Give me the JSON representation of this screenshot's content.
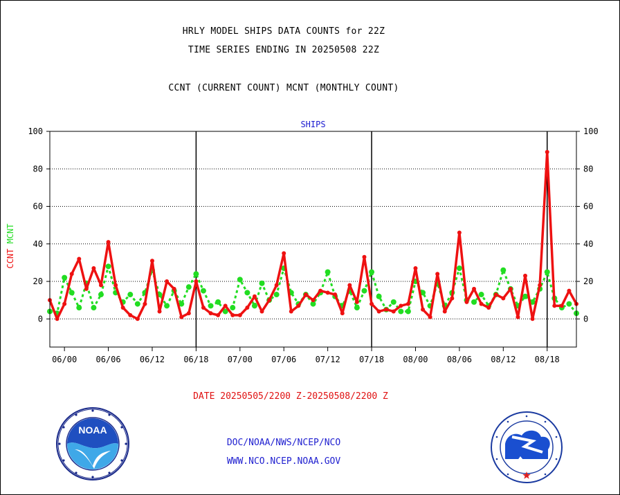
{
  "header": {
    "title1": "HRLY MODEL SHIPS DATA COUNTS for 22Z",
    "title2": "TIME SERIES ENDING IN 20250508 22Z",
    "subtitle": "CCNT (CURRENT COUNT) MCNT (MONTHLY COUNT)"
  },
  "footer": {
    "date_range": "DATE 20250505/2200 Z-20250508/2200 Z",
    "org": "DOC/NOAA/NWS/NCEP/NCO",
    "url": "WWW.NCO.NCEP.NOAA.GOV"
  },
  "logos": {
    "noaa_text": "NOAA",
    "nws_text": "NATIONAL WEATHER SERVICE"
  },
  "chart_data": {
    "type": "line",
    "title": "SHIPS",
    "ylabel_ccnt": "CCNT",
    "ylabel_mcnt": "MCNT",
    "ylim": [
      -15,
      100
    ],
    "yticks": [
      0,
      20,
      40,
      60,
      80,
      100
    ],
    "xlim": [
      -2,
      70
    ],
    "xtick_positions": [
      0,
      6,
      12,
      18,
      24,
      30,
      36,
      42,
      48,
      54,
      60,
      66
    ],
    "xtick_labels": [
      "06/00",
      "06/06",
      "06/12",
      "06/18",
      "07/00",
      "07/06",
      "07/12",
      "07/18",
      "08/00",
      "08/06",
      "08/12",
      "08/18"
    ],
    "day_boundaries": [
      18,
      42,
      66
    ],
    "grid": true,
    "colors": {
      "ccnt": "#ee1111",
      "mcnt": "#22dd22",
      "title": "#1a1ad0",
      "tick": "#000000"
    },
    "series": [
      {
        "name": "CCNT",
        "x": [
          -2,
          -1,
          0,
          1,
          2,
          3,
          4,
          5,
          6,
          7,
          8,
          9,
          10,
          11,
          12,
          13,
          14,
          15,
          16,
          17,
          18,
          19,
          20,
          21,
          22,
          23,
          24,
          25,
          26,
          27,
          28,
          29,
          30,
          31,
          32,
          33,
          34,
          35,
          36,
          37,
          38,
          39,
          40,
          41,
          42,
          43,
          44,
          45,
          46,
          47,
          48,
          49,
          50,
          51,
          52,
          53,
          54,
          55,
          56,
          57,
          58,
          59,
          60,
          61,
          62,
          63,
          64,
          65,
          66,
          67,
          68,
          69,
          70
        ],
        "values": [
          10,
          0,
          8,
          24,
          32,
          16,
          27,
          18,
          41,
          18,
          6,
          2,
          0,
          8,
          31,
          4,
          20,
          16,
          1,
          3,
          20,
          6,
          3,
          2,
          7,
          2,
          2,
          6,
          12,
          4,
          10,
          18,
          35,
          4,
          7,
          13,
          10,
          15,
          14,
          13,
          3,
          18,
          9,
          33,
          8,
          4,
          5,
          4,
          7,
          8,
          27,
          5,
          1,
          24,
          4,
          11,
          46,
          9,
          16,
          8,
          6,
          13,
          11,
          16,
          1,
          23,
          0,
          18,
          89,
          7,
          7,
          15,
          8
        ]
      },
      {
        "name": "MCNT",
        "x": [
          -2,
          -1,
          0,
          1,
          2,
          3,
          4,
          5,
          6,
          7,
          8,
          9,
          10,
          11,
          12,
          13,
          14,
          15,
          16,
          17,
          18,
          19,
          20,
          21,
          22,
          23,
          24,
          25,
          26,
          27,
          28,
          29,
          30,
          31,
          32,
          33,
          34,
          35,
          36,
          37,
          38,
          39,
          40,
          41,
          42,
          43,
          44,
          45,
          46,
          47,
          48,
          49,
          50,
          51,
          52,
          53,
          54,
          55,
          56,
          57,
          58,
          59,
          60,
          61,
          62,
          63,
          64,
          65,
          66,
          67,
          68,
          69,
          70
        ],
        "values": [
          4,
          3,
          22,
          14,
          6,
          19,
          6,
          13,
          28,
          14,
          9,
          13,
          8,
          14,
          26,
          13,
          7,
          15,
          8,
          17,
          24,
          15,
          7,
          9,
          4,
          6,
          21,
          14,
          7,
          19,
          10,
          13,
          27,
          14,
          8,
          13,
          8,
          14,
          25,
          12,
          7,
          15,
          6,
          15,
          25,
          12,
          5,
          9,
          4,
          4,
          20,
          14,
          7,
          19,
          7,
          14,
          27,
          10,
          9,
          13,
          7,
          13,
          26,
          16,
          7,
          12,
          9,
          16,
          25,
          11,
          6,
          8,
          3
        ]
      }
    ]
  }
}
